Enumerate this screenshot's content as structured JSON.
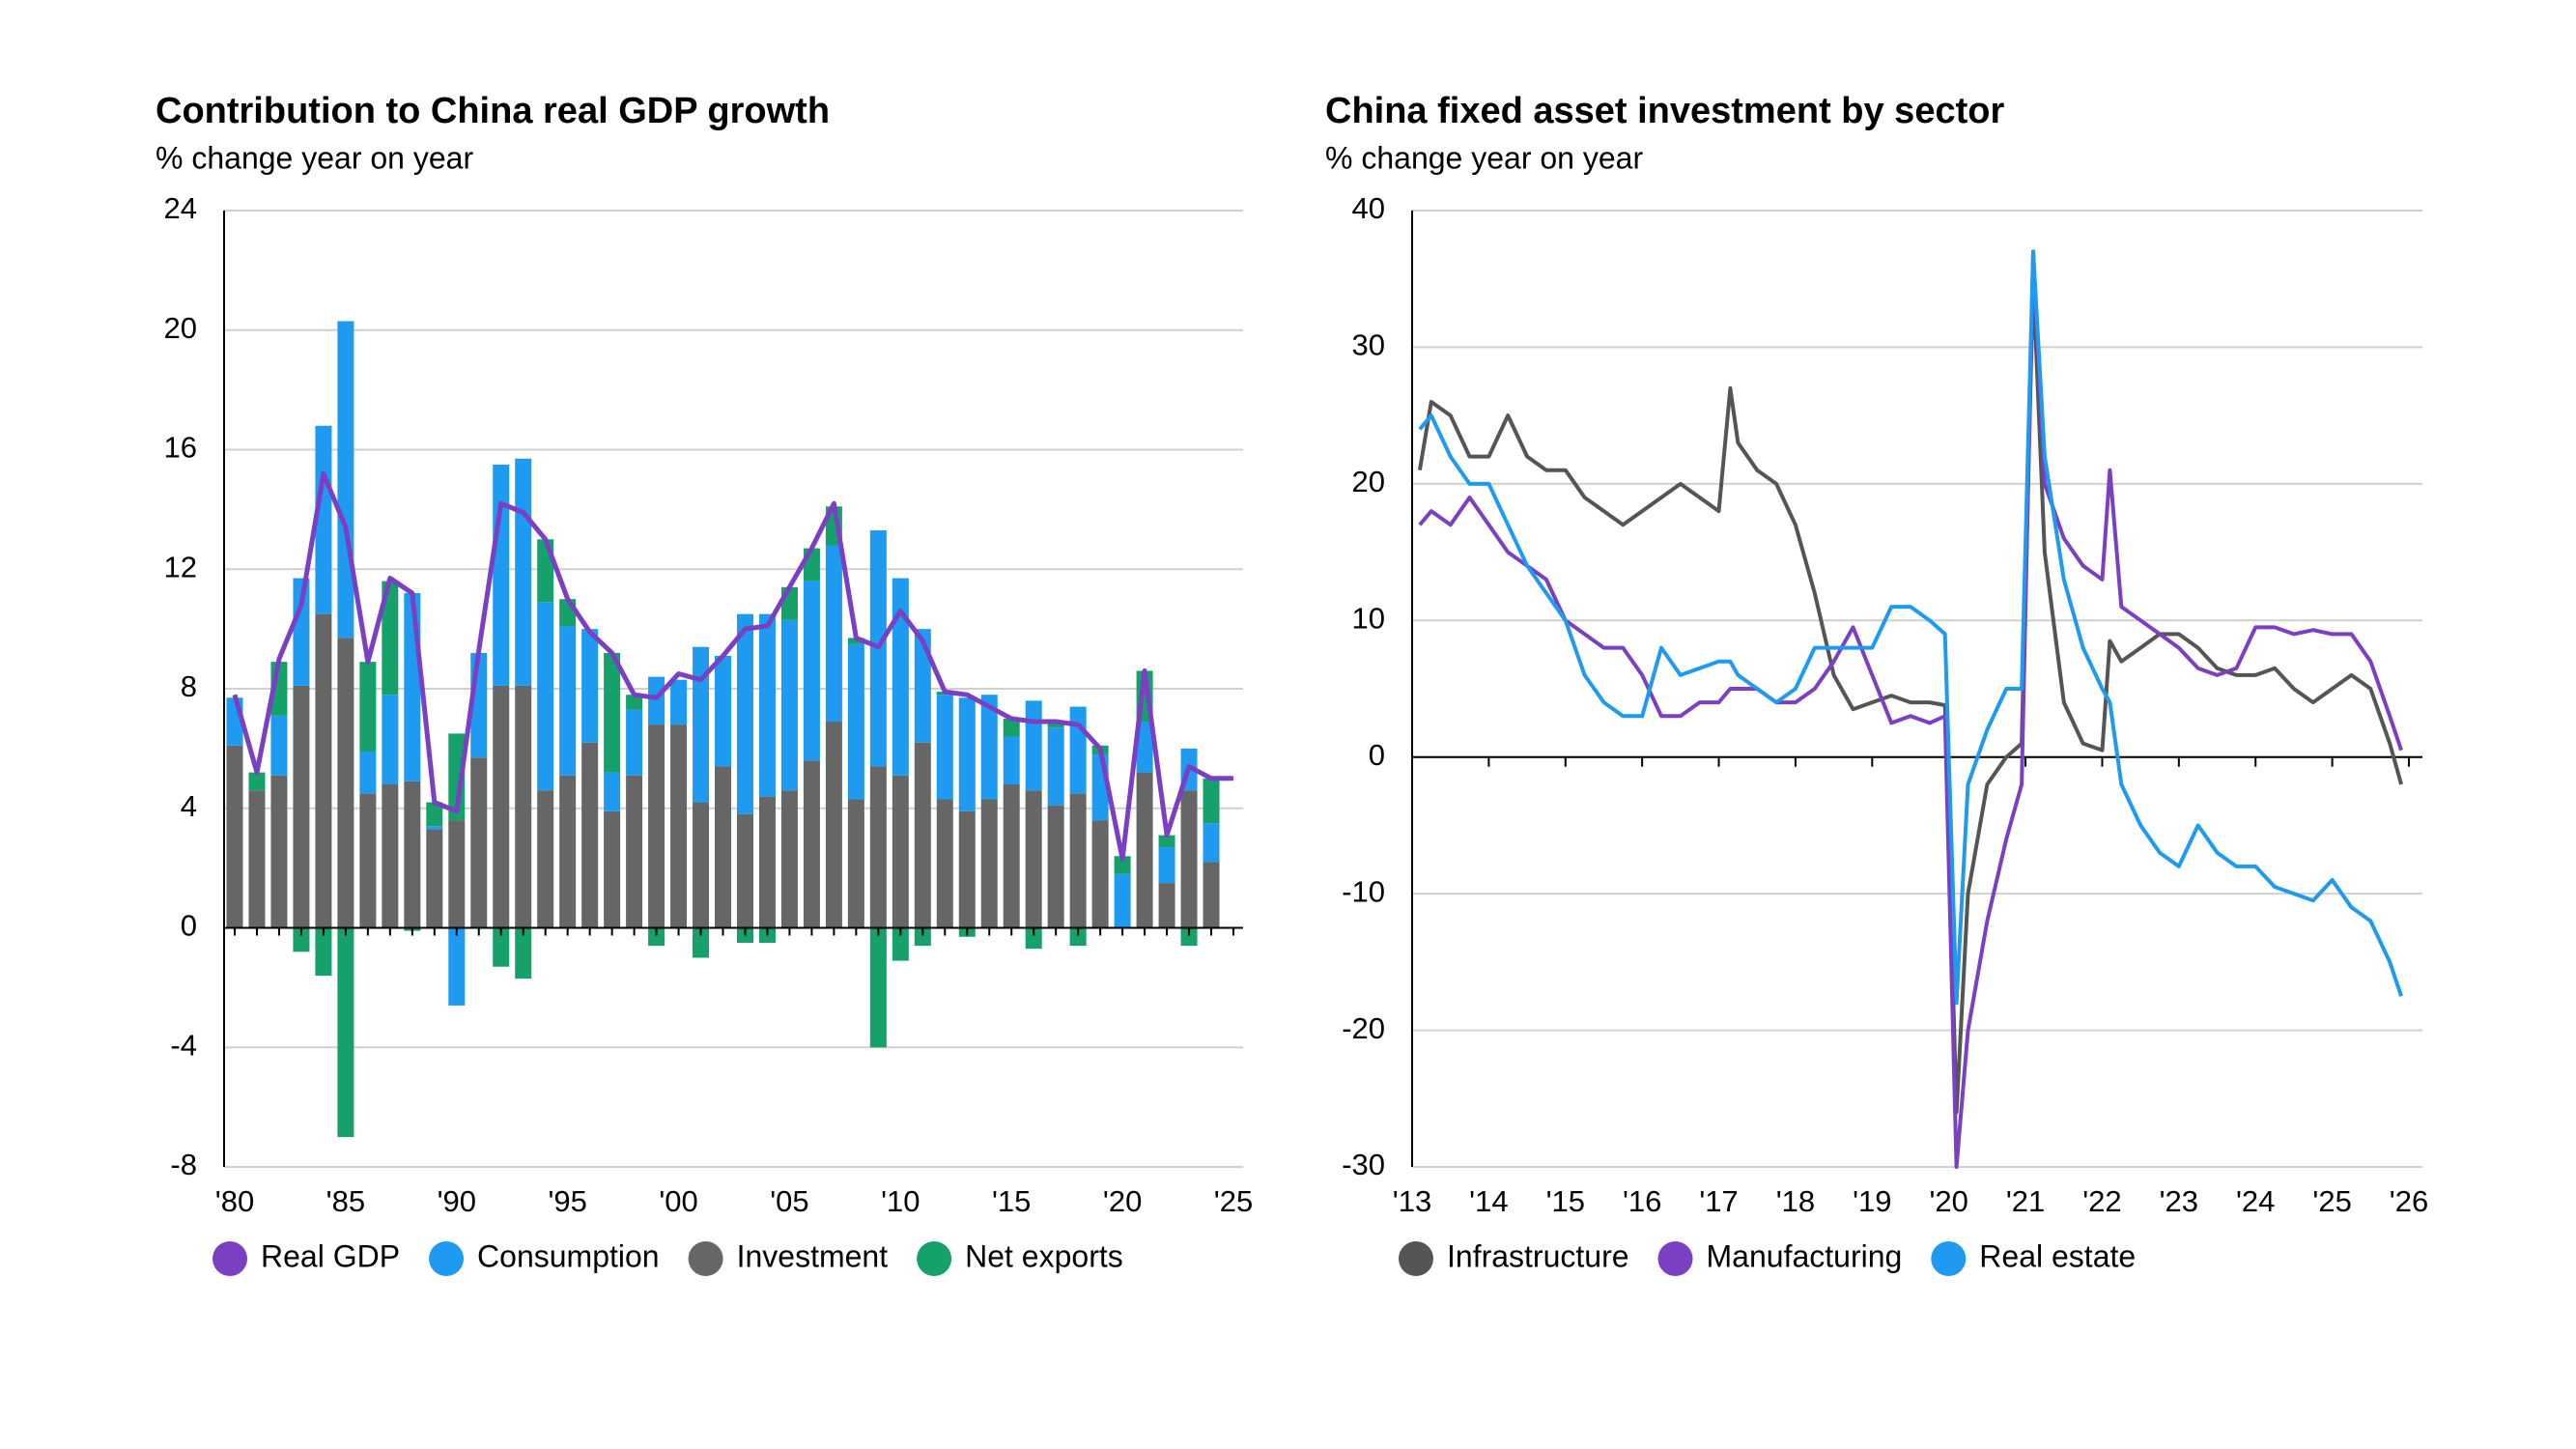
{
  "chart_data": [
    {
      "type": "bar",
      "stacked": true,
      "title": "Contribution to China real GDP growth",
      "subtitle": "% change year on year",
      "categories": [
        "'80",
        null,
        null,
        null,
        null,
        "'85",
        null,
        null,
        null,
        null,
        "'90",
        null,
        null,
        null,
        null,
        "'95",
        null,
        null,
        null,
        null,
        "'00",
        null,
        null,
        null,
        null,
        "'05",
        null,
        null,
        null,
        null,
        "'10",
        null,
        null,
        null,
        null,
        "'15",
        null,
        null,
        null,
        null,
        "'20",
        null,
        null,
        null,
        null,
        "'25"
      ],
      "ylim": [
        -8,
        24
      ],
      "yticks": [
        -8,
        -4,
        0,
        4,
        8,
        12,
        16,
        20,
        24
      ],
      "grid": true,
      "series": [
        {
          "name": "Real GDP",
          "type": "line",
          "color": "#7b3fc4",
          "values": [
            7.8,
            5.2,
            9.0,
            10.8,
            15.2,
            13.4,
            8.9,
            11.7,
            11.2,
            4.2,
            3.9,
            9.3,
            14.2,
            13.9,
            13.0,
            11.0,
            9.9,
            9.2,
            7.8,
            7.7,
            8.5,
            8.3,
            9.1,
            10.0,
            10.1,
            11.4,
            12.7,
            14.2,
            9.7,
            9.4,
            10.6,
            9.6,
            7.9,
            7.8,
            7.4,
            7.0,
            6.9,
            6.9,
            6.8,
            6.0,
            2.3,
            8.6,
            3.1,
            5.4,
            5.0,
            5.0
          ]
        },
        {
          "name": "Consumption",
          "type": "bar",
          "color": "#1e9bf0",
          "values": [
            1.6,
            0,
            2.0,
            3.6,
            6.3,
            10.6,
            1.4,
            3.0,
            6.3,
            0.1,
            -2.6,
            3.5,
            7.4,
            7.6,
            6.3,
            5.0,
            3.8,
            1.3,
            2.2,
            1.6,
            1.5,
            5.2,
            3.7,
            6.7,
            6.1,
            5.7,
            6.0,
            5.9,
            5.2,
            7.9,
            6.6,
            3.8,
            3.5,
            3.8,
            3.5,
            1.6,
            3.0,
            2.6,
            2.9,
            2.2,
            1.8,
            1.7,
            1.2,
            1.4,
            1.3,
            null
          ]
        },
        {
          "name": "Investment",
          "type": "bar",
          "color": "#666666",
          "values": [
            6.1,
            4.6,
            5.1,
            8.1,
            10.5,
            9.7,
            4.5,
            4.8,
            4.9,
            3.3,
            3.6,
            5.7,
            8.1,
            8.1,
            4.6,
            5.1,
            6.2,
            3.9,
            5.1,
            6.8,
            6.8,
            4.2,
            5.4,
            3.8,
            4.4,
            4.6,
            5.6,
            6.9,
            4.3,
            5.4,
            5.1,
            6.2,
            4.3,
            3.9,
            4.3,
            4.8,
            4.6,
            4.1,
            4.5,
            3.6,
            0,
            5.2,
            1.5,
            4.6,
            2.2,
            null
          ]
        },
        {
          "name": "Net exports",
          "type": "bar",
          "color": "#16a06a",
          "values": [
            0,
            0.6,
            1.8,
            -0.8,
            -1.6,
            -7.0,
            3.0,
            3.8,
            -0.1,
            0.8,
            2.9,
            0,
            -1.3,
            -1.7,
            2.1,
            0.9,
            0,
            4.0,
            0.5,
            -0.6,
            0,
            -1.0,
            0,
            -0.5,
            -0.5,
            1.1,
            1.1,
            1.3,
            0.2,
            -4.0,
            -1.1,
            -0.6,
            0.1,
            -0.3,
            0,
            0.6,
            -0.7,
            0.2,
            -0.6,
            0.3,
            0.6,
            1.7,
            0.4,
            -0.6,
            1.5,
            null
          ]
        }
      ]
    },
    {
      "type": "line",
      "title": "China fixed asset investment by sector",
      "subtitle": "% change year on year",
      "x": [
        2013.1,
        2013.25,
        2013.5,
        2013.75,
        2014.0,
        2014.25,
        2014.5,
        2014.75,
        2015.0,
        2015.25,
        2015.5,
        2015.75,
        2016.0,
        2016.25,
        2016.5,
        2016.75,
        2017.0,
        2017.15,
        2017.25,
        2017.5,
        2017.75,
        2018.0,
        2018.25,
        2018.5,
        2018.75,
        2019.0,
        2019.25,
        2019.5,
        2019.75,
        2019.95,
        2020.1,
        2020.25,
        2020.5,
        2020.75,
        2020.95,
        2021.1,
        2021.25,
        2021.5,
        2021.75,
        2022.0,
        2022.1,
        2022.25,
        2022.5,
        2022.75,
        2023.0,
        2023.25,
        2023.5,
        2023.75,
        2024.0,
        2024.25,
        2024.5,
        2024.75,
        2025.0,
        2025.25,
        2025.5,
        2025.75,
        2025.9
      ],
      "xlim": [
        2013,
        2026
      ],
      "xticks": [
        {
          "value": 2013,
          "label": "'13"
        },
        {
          "value": 2014,
          "label": "'14"
        },
        {
          "value": 2015,
          "label": "'15"
        },
        {
          "value": 2016,
          "label": "'16"
        },
        {
          "value": 2017,
          "label": "'17"
        },
        {
          "value": 2018,
          "label": "'18"
        },
        {
          "value": 2019,
          "label": "'19"
        },
        {
          "value": 2020,
          "label": "'20"
        },
        {
          "value": 2021,
          "label": "'21"
        },
        {
          "value": 2022,
          "label": "'22"
        },
        {
          "value": 2023,
          "label": "'23"
        },
        {
          "value": 2024,
          "label": "'24"
        },
        {
          "value": 2025,
          "label": "'25"
        },
        {
          "value": 2026,
          "label": "'26"
        }
      ],
      "ylim": [
        -30,
        40
      ],
      "yticks": [
        -30,
        -20,
        -10,
        0,
        10,
        20,
        30,
        40
      ],
      "grid": true,
      "series": [
        {
          "name": "Infrastructure",
          "color": "#555555",
          "values": [
            21,
            26,
            25,
            22,
            22,
            25,
            22,
            21,
            21,
            19,
            18,
            17,
            18,
            19,
            20,
            19,
            18,
            27,
            23,
            21,
            20,
            17,
            12,
            6,
            3.5,
            4,
            4.5,
            4,
            4,
            3.8,
            -26,
            -10,
            -2,
            0,
            1,
            35,
            15,
            4,
            1,
            0.5,
            8.5,
            7,
            8,
            9,
            9,
            8,
            6.5,
            6,
            6,
            6.5,
            5,
            4,
            5,
            6,
            5,
            1,
            -2
          ]
        },
        {
          "name": "Manufacturing",
          "color": "#7b3fc4",
          "values": [
            17,
            18,
            17,
            19,
            17,
            15,
            14,
            13,
            10,
            9,
            8,
            8,
            6,
            3,
            3,
            4,
            4,
            5,
            5,
            5,
            4,
            4,
            5,
            7,
            9.5,
            6,
            2.5,
            3,
            2.5,
            3,
            -30,
            -20,
            -12,
            -6,
            -2,
            37,
            20,
            16,
            14,
            13,
            21,
            11,
            10,
            9,
            8,
            6.5,
            6,
            6.5,
            9.5,
            9.5,
            9,
            9.3,
            9,
            9,
            7,
            3,
            0.5
          ]
        },
        {
          "name": "Real estate",
          "color": "#1e9bf0",
          "values": [
            24,
            25,
            22,
            20,
            20,
            17,
            14,
            12,
            10,
            6,
            4,
            3,
            3,
            8,
            6,
            6.5,
            7,
            7,
            6,
            5,
            4,
            5,
            8,
            8,
            8,
            8,
            11,
            11,
            10,
            9,
            -18,
            -2,
            2,
            5,
            5,
            37,
            22,
            13,
            8,
            5,
            4,
            -2,
            -5,
            -7,
            -8,
            -5,
            -7,
            -8,
            -8,
            -9.5,
            -10,
            -10.5,
            -9,
            -11,
            -12,
            -15,
            -17.5
          ]
        }
      ]
    }
  ]
}
